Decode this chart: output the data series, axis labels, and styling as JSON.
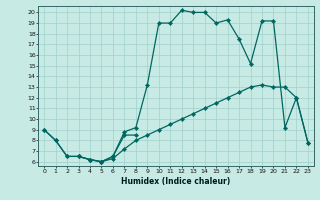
{
  "xlabel": "Humidex (Indice chaleur)",
  "background_color": "#c8eae5",
  "line_color": "#006660",
  "grid_color": "#a0d0cc",
  "xlim": [
    -0.5,
    23.5
  ],
  "ylim": [
    5.6,
    20.6
  ],
  "xticks": [
    0,
    1,
    2,
    3,
    4,
    5,
    6,
    7,
    8,
    9,
    10,
    11,
    12,
    13,
    14,
    15,
    16,
    17,
    18,
    19,
    20,
    21,
    22,
    23
  ],
  "yticks": [
    6,
    7,
    8,
    9,
    10,
    11,
    12,
    13,
    14,
    15,
    16,
    17,
    18,
    19,
    20
  ],
  "curve1_x": [
    0,
    1,
    2,
    3,
    4,
    5,
    6,
    7,
    8
  ],
  "curve1_y": [
    9.0,
    8.0,
    6.5,
    6.5,
    6.2,
    6.0,
    6.5,
    8.5,
    8.5
  ],
  "curve2_x": [
    0,
    1,
    2,
    3,
    4,
    5,
    6,
    7,
    8,
    9,
    10,
    11,
    12,
    13,
    14,
    15,
    16,
    17,
    18,
    19,
    20,
    21,
    22,
    23
  ],
  "curve2_y": [
    9.0,
    8.0,
    6.5,
    6.5,
    6.2,
    6.0,
    6.3,
    7.2,
    8.0,
    8.5,
    9.0,
    9.5,
    10.0,
    10.5,
    11.0,
    11.5,
    12.0,
    12.5,
    13.0,
    13.2,
    13.0,
    13.0,
    12.0,
    7.8
  ],
  "curve3_x": [
    3,
    4,
    5,
    6,
    7,
    8,
    9,
    10,
    11,
    12,
    13,
    14,
    15,
    16,
    17,
    18,
    19,
    20,
    21,
    22,
    23
  ],
  "curve3_y": [
    6.5,
    6.2,
    6.0,
    6.5,
    8.8,
    9.2,
    13.2,
    19.0,
    19.0,
    20.2,
    20.0,
    20.0,
    19.0,
    19.3,
    17.5,
    15.2,
    19.2,
    19.2,
    9.2,
    12.0,
    7.8
  ]
}
